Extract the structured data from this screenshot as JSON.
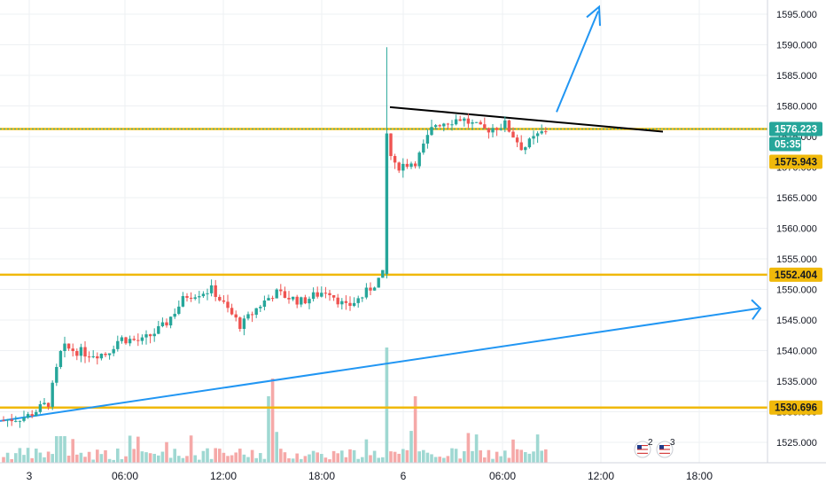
{
  "chart_data": {
    "type": "candlestick",
    "x_ticks": [
      "3",
      "06:00",
      "12:00",
      "18:00",
      "6",
      "06:00",
      "12:00",
      "18:00"
    ],
    "y_ticks": [
      "1525.000",
      "1530.000",
      "1535.000",
      "1540.000",
      "1545.000",
      "1550.000",
      "1555.000",
      "1560.000",
      "1565.000",
      "1570.000",
      "1575.000",
      "1580.000",
      "1585.000",
      "1590.000",
      "1595.000"
    ],
    "ylim": [
      1521.4,
      1598.4
    ],
    "grid": true,
    "colors": {
      "up": "#26a69a",
      "down": "#ef5350",
      "vol_up": "#9fd8d2",
      "vol_down": "#f5a9a8",
      "level": "#f0b90b",
      "trend": "#2196f3",
      "resistance": "#000000",
      "price_tag": "#26a69a"
    },
    "horizontal_levels": [
      {
        "price": 1576.223
      },
      {
        "price": 1552.404
      },
      {
        "price": 1530.696
      }
    ],
    "price_labels": [
      {
        "text": "1576.223",
        "style": "current"
      },
      {
        "text": "05:35",
        "style": "countdown"
      },
      {
        "text": "1575.943",
        "style": "level"
      },
      {
        "text": "1552.404",
        "style": "level"
      },
      {
        "text": "1530.696",
        "style": "level"
      }
    ],
    "event_markers": [
      {
        "icon": "us-flag-icon",
        "count": "2"
      },
      {
        "icon": "us-flag-icon",
        "count": "3"
      }
    ]
  }
}
